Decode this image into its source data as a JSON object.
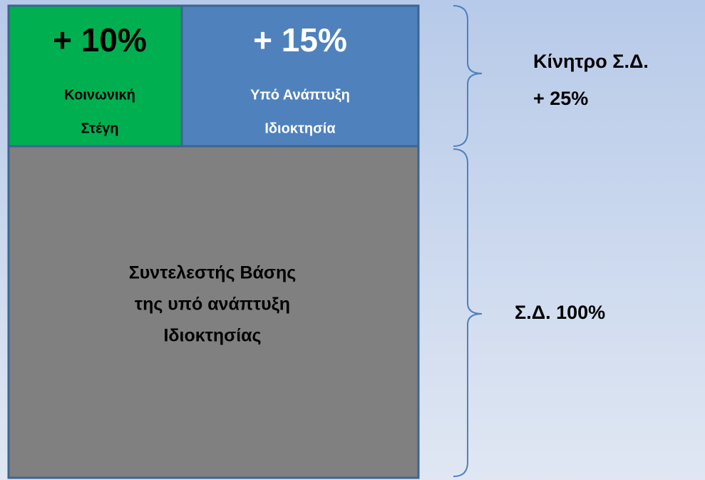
{
  "blocks": [
    {
      "percent": "+ 10%",
      "label": [
        "Κοινωνική",
        "Στέγη"
      ]
    },
    {
      "percent": "+ 15%",
      "label": [
        "Υπό Ανάπτυξη",
        "Ιδιοκτησία"
      ]
    },
    {
      "label": [
        "Συντελεστής Βάσης",
        "της υπό ανάπτυξη",
        "Ιδιοκτησίας"
      ]
    }
  ],
  "annotations": [
    {
      "lines": [
        "Κίνητρο Σ.Δ.",
        "+ 25%"
      ]
    },
    {
      "lines": [
        "Σ.Δ. 100%"
      ]
    }
  ]
}
